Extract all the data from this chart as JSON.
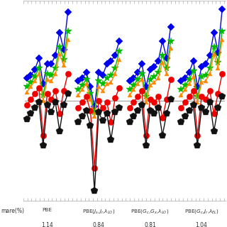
{
  "n_elements": 11,
  "blue": {
    "color": "#0000EE",
    "marker": "D",
    "ms": 5,
    "lw": 1.0,
    "pbe": [
      1.5,
      1.6,
      1.8,
      2.2,
      1.3,
      2.0,
      2.0,
      2.3,
      3.1,
      2.5,
      3.8
    ],
    "jlo": [
      1.4,
      1.5,
      1.7,
      1.2,
      0.5,
      1.7,
      1.6,
      2.0,
      2.1,
      2.3,
      2.8
    ],
    "gcgxlo": [
      1.4,
      1.5,
      1.7,
      2.0,
      1.2,
      1.8,
      1.9,
      2.1,
      2.8,
      2.2,
      3.3
    ],
    "gcjrel": [
      1.4,
      1.5,
      1.7,
      2.1,
      1.2,
      1.9,
      2.0,
      2.3,
      3.1,
      2.4,
      3.9
    ]
  },
  "green": {
    "color": "#00BB00",
    "marker": "*",
    "ms": 7,
    "lw": 1.0,
    "pbe": [
      1.2,
      1.35,
      1.55,
      1.85,
      0.9,
      1.65,
      1.6,
      1.85,
      2.6,
      2.15,
      3.15
    ],
    "jlo": [
      1.1,
      1.25,
      1.45,
      0.95,
      0.3,
      1.4,
      1.3,
      1.5,
      1.6,
      1.85,
      2.45
    ],
    "gcgxlo": [
      1.1,
      1.25,
      1.45,
      1.65,
      0.85,
      1.45,
      1.55,
      1.7,
      2.3,
      1.85,
      2.8
    ],
    "gcjrel": [
      1.1,
      1.25,
      1.45,
      1.75,
      0.85,
      1.55,
      1.6,
      1.85,
      2.6,
      2.05,
      3.15
    ]
  },
  "orange": {
    "color": "#FF8800",
    "marker": "^",
    "ms": 5,
    "lw": 1.0,
    "pbe": [
      1.0,
      1.2,
      1.4,
      1.65,
      0.7,
      1.45,
      1.4,
      1.65,
      2.35,
      1.95,
      2.85
    ],
    "jlo": [
      0.9,
      1.1,
      1.3,
      0.75,
      0.15,
      1.2,
      1.05,
      1.3,
      1.35,
      1.65,
      2.15
    ],
    "gcgxlo": [
      0.9,
      1.1,
      1.3,
      1.45,
      0.65,
      1.25,
      1.35,
      1.5,
      2.05,
      1.65,
      2.55
    ],
    "gcjrel": [
      0.9,
      1.1,
      1.3,
      1.55,
      0.65,
      1.35,
      1.4,
      1.65,
      2.35,
      1.85,
      2.85
    ]
  },
  "red": {
    "color": "#EE0000",
    "marker": "o",
    "ms": 6,
    "lw": 1.0,
    "pbe": [
      0.55,
      0.75,
      0.95,
      1.15,
      -0.5,
      0.95,
      0.75,
      1.05,
      0.25,
      1.05,
      1.65
    ],
    "jlo": [
      0.45,
      0.65,
      0.85,
      0.35,
      -1.65,
      0.7,
      0.45,
      0.65,
      -0.05,
      0.8,
      1.15
    ],
    "gcgxlo": [
      0.45,
      0.65,
      0.85,
      1.05,
      -0.5,
      0.75,
      0.65,
      0.85,
      0.1,
      0.75,
      1.45
    ],
    "gcjrel": [
      0.45,
      0.65,
      0.85,
      1.05,
      -0.5,
      0.85,
      0.75,
      1.05,
      0.25,
      0.95,
      1.65
    ]
  },
  "black": {
    "color": "#111111",
    "marker": "p",
    "ms": 7,
    "lw": 1.0,
    "pbe": [
      0.05,
      0.25,
      0.45,
      0.65,
      -0.85,
      0.55,
      0.3,
      0.65,
      -0.35,
      0.55,
      0.95
    ],
    "jlo": [
      -0.05,
      0.15,
      0.35,
      -0.15,
      -2.45,
      0.3,
      0.0,
      0.25,
      -0.65,
      0.3,
      0.45
    ],
    "gcgxlo": [
      -0.05,
      0.15,
      0.35,
      0.55,
      -0.85,
      0.35,
      0.25,
      0.45,
      -0.5,
      0.25,
      0.75
    ],
    "gcjrel": [
      -0.05,
      0.15,
      0.35,
      0.55,
      -0.85,
      0.45,
      0.3,
      0.65,
      -0.35,
      0.45,
      0.85
    ]
  },
  "hline_y": 0.7,
  "hline_color": "#999999",
  "group_labels": [
    "PBE",
    "PBE($J_s$,$J_r$,$\\lambda_{LO}$)",
    "PBE($G_c$,$G_x$,$\\lambda_{LO}$)",
    "PBE($G_c$,$J_r$,$\\lambda_{EL}$)"
  ],
  "mare_row_label": "mare(%)",
  "mare_values": [
    "1.14",
    "0.84",
    "0.81",
    "1.04"
  ],
  "bg_color": "#FFFFFF"
}
